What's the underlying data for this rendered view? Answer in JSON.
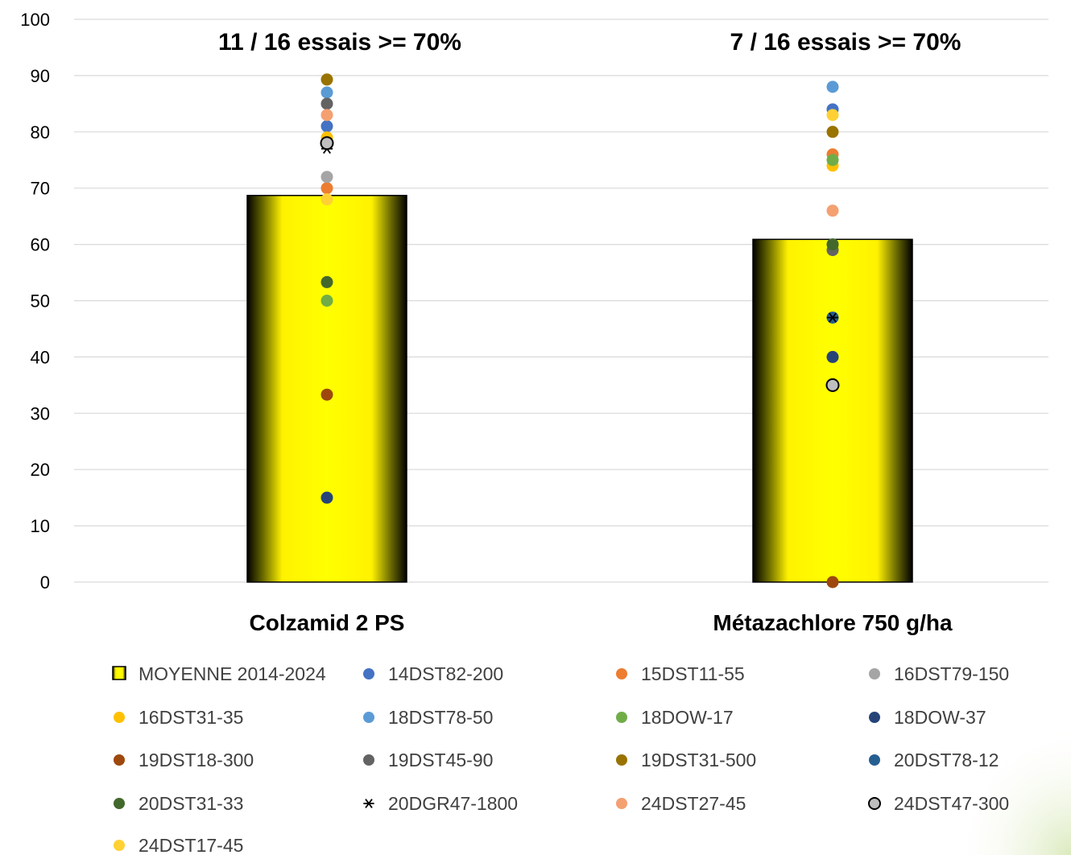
{
  "chart_data": {
    "type": "bar",
    "categories": [
      "Colzamid 2 PS",
      "Métazachlore 750 g/ha"
    ],
    "ylim": [
      0,
      100
    ],
    "yticks": [
      0,
      10,
      20,
      30,
      40,
      50,
      60,
      70,
      80,
      90,
      100
    ],
    "grid": true,
    "legend_position": "bottom",
    "annotations": [
      "11 / 16 essais >= 70%",
      "7 / 16 essais >= 70%"
    ],
    "bars": {
      "name": "MOYENNE 2014-2024",
      "values": [
        68.7,
        60.9
      ]
    },
    "series": [
      {
        "name": "14DST82-200",
        "color": "#4472C4",
        "marker": "circle",
        "values": [
          81,
          84
        ]
      },
      {
        "name": "15DST11-55",
        "color": "#ED7D31",
        "marker": "circle",
        "values": [
          70,
          76
        ]
      },
      {
        "name": "16DST79-150",
        "color": "#A5A5A5",
        "marker": "circle",
        "values": [
          72,
          60
        ]
      },
      {
        "name": "16DST31-35",
        "color": "#FFC000",
        "marker": "circle",
        "values": [
          79,
          74
        ]
      },
      {
        "name": "18DST78-50",
        "color": "#5B9BD5",
        "marker": "circle",
        "values": [
          87,
          88
        ]
      },
      {
        "name": "18DOW-17",
        "color": "#70AD47",
        "marker": "circle",
        "values": [
          50,
          75
        ]
      },
      {
        "name": "18DOW-37",
        "color": "#264478",
        "marker": "circle",
        "values": [
          15,
          40
        ]
      },
      {
        "name": "19DST18-300",
        "color": "#9E480E",
        "marker": "circle",
        "values": [
          33.3,
          0
        ]
      },
      {
        "name": "19DST45-90",
        "color": "#636363",
        "marker": "circle",
        "values": [
          85,
          59
        ]
      },
      {
        "name": "19DST31-500",
        "color": "#997300",
        "marker": "circle",
        "values": [
          89.3,
          80
        ]
      },
      {
        "name": "20DST78-12",
        "color": "#255E91",
        "marker": "circle",
        "values": [
          78,
          47
        ]
      },
      {
        "name": "20DST31-33",
        "color": "#43682B",
        "marker": "circle",
        "values": [
          53.3,
          60
        ]
      },
      {
        "name": "20DGR47-1800",
        "color": "#000000",
        "marker": "star",
        "values": [
          77,
          47
        ]
      },
      {
        "name": "24DST27-45",
        "color": "#F4A071",
        "marker": "circle",
        "values": [
          83,
          66
        ]
      },
      {
        "name": "24DST47-300",
        "color": "#BFBFBF",
        "marker": "circle-outline",
        "values": [
          78,
          35
        ]
      },
      {
        "name": "24DST17-45",
        "color": "#FFD134",
        "marker": "circle",
        "values": [
          68,
          83
        ]
      }
    ]
  }
}
